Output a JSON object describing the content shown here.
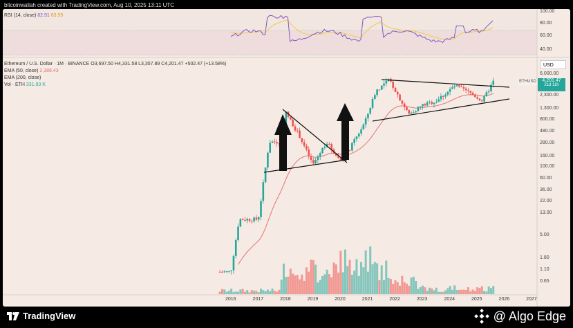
{
  "header": {
    "text": "bitcoinwallah created with TradingView.com, Aug 10, 2025 13:11 UTC"
  },
  "rsi": {
    "label": "RSI (14, close)",
    "value1": "82.91",
    "value2": "63.59",
    "ticks": [
      "100.00",
      "80.00",
      "60.00",
      "40.00"
    ]
  },
  "legend": {
    "title": "Ethereum / U.S. Dollar · 1M · BINANCE",
    "ohlc": "O3,697.50  H4,331.58  L3,357.89  C4,201.47  +502.47 (+13.58%)",
    "ema50_label": "EMA (50, close)",
    "ema50_value": "2,388.43",
    "ema200_label": "EMA (200, close)",
    "vol_label": "Vol · ETH",
    "vol_value": "331.93 K"
  },
  "price_axis": {
    "currency": "USD",
    "ticks": [
      "6,000.00",
      "2,300.00",
      "1,300.00",
      "800.00",
      "480.00",
      "280.00",
      "160.00",
      "100.00",
      "60.00",
      "36.00",
      "22.00",
      "13.00",
      "5.00",
      "1.80",
      "1.10",
      "0.65"
    ],
    "badge_symbol": "ETHUSD",
    "badge_price": "4,201.47",
    "badge_time": "21d 11h"
  },
  "colors": {
    "up": "#26a69a",
    "down": "#ef5350",
    "ema50": "#e57373",
    "rsi": "#7e57c2",
    "rsi_ma": "#f2c94c",
    "panel_bg": "#f5ebe4"
  },
  "chart_data": {
    "type": "candlestick",
    "title": "Ethereum / U.S. Dollar · 1M · BINANCE",
    "x_axis_labels": [
      "2016",
      "2017",
      "2018",
      "2019",
      "2020",
      "2021",
      "2022",
      "2023",
      "2024",
      "2025",
      "2026",
      "2027"
    ],
    "price_scale": "log",
    "ylim": [
      0.4,
      9000
    ],
    "series": [
      {
        "name": "ETHUSD",
        "yearly_path": [
          {
            "x": 2015.6,
            "y": 1.0
          },
          {
            "x": 2016.0,
            "y": 1.0
          },
          {
            "x": 2016.3,
            "y": 10
          },
          {
            "x": 2016.8,
            "y": 10
          },
          {
            "x": 2017.0,
            "y": 10
          },
          {
            "x": 2017.4,
            "y": 300
          },
          {
            "x": 2017.8,
            "y": 300
          },
          {
            "x": 2018.0,
            "y": 1100
          },
          {
            "x": 2018.5,
            "y": 400
          },
          {
            "x": 2019.0,
            "y": 110
          },
          {
            "x": 2019.5,
            "y": 300
          },
          {
            "x": 2020.0,
            "y": 130
          },
          {
            "x": 2020.3,
            "y": 200
          },
          {
            "x": 2020.9,
            "y": 700
          },
          {
            "x": 2021.3,
            "y": 2800
          },
          {
            "x": 2021.8,
            "y": 4600
          },
          {
            "x": 2022.5,
            "y": 1000
          },
          {
            "x": 2023.0,
            "y": 1500
          },
          {
            "x": 2023.5,
            "y": 1800
          },
          {
            "x": 2024.2,
            "y": 3500
          },
          {
            "x": 2024.8,
            "y": 2500
          },
          {
            "x": 2025.2,
            "y": 1800
          },
          {
            "x": 2025.6,
            "y": 4201.47
          }
        ]
      },
      {
        "name": "EMA (50, close)",
        "last": 2388.43
      },
      {
        "name": "Vol · ETH",
        "last": "331.93 K"
      }
    ],
    "annotations": [
      {
        "type": "arrow-up",
        "near": "2018"
      },
      {
        "type": "arrow-up",
        "near": "2020"
      },
      {
        "type": "triangle",
        "from": 2017.5,
        "to": 2020.5
      },
      {
        "type": "triangle",
        "from": 2021.8,
        "to": 2026.0
      }
    ]
  }
}
